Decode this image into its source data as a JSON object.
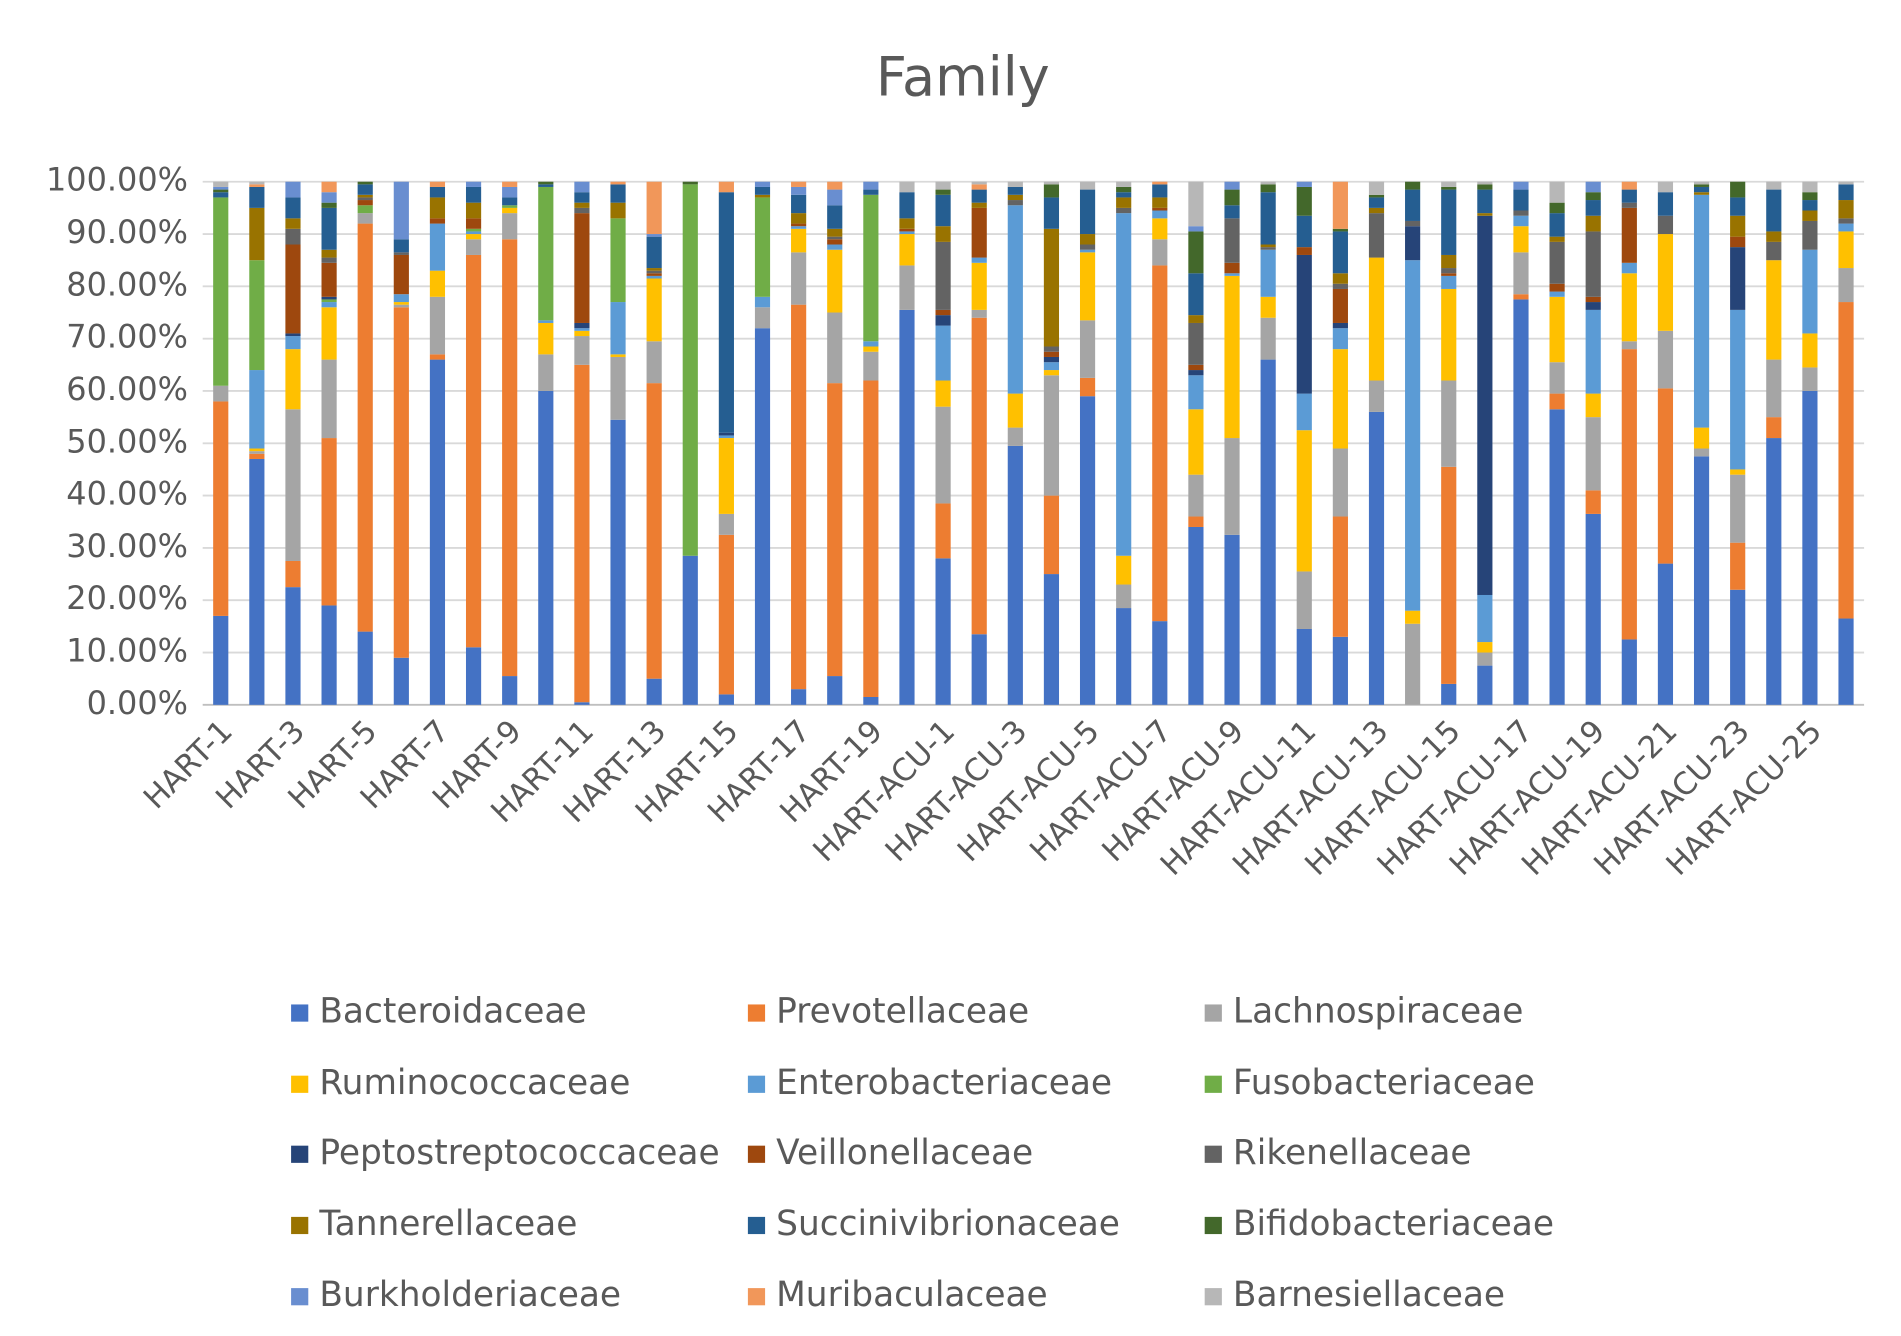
{
  "chart_data": {
    "type": "stacked_bar",
    "title": "Family",
    "categories": [
      "HART-1",
      null,
      "HART-3",
      null,
      "HART-5",
      null,
      "HART-7",
      null,
      "HART-9",
      null,
      "HART-11",
      null,
      "HART-13",
      null,
      "HART-15",
      null,
      "HART-17",
      null,
      "HART-19",
      null,
      "HART-ACU-1",
      null,
      "HART-ACU-3",
      null,
      "HART-ACU-5",
      null,
      "HART-ACU-7",
      null,
      "HART-ACU-9",
      null,
      "HART-ACU-11",
      null,
      "HART-ACU-13",
      null,
      "HART-ACU-15",
      null,
      "HART-ACU-17",
      null,
      "HART-ACU-19",
      null,
      "HART-ACU-21",
      null,
      "HART-ACU-23",
      null,
      "HART-ACU-25",
      null
    ],
    "ylim": [
      0,
      100
    ],
    "yticks": [
      {
        "value": 0,
        "label": "0.00%"
      },
      {
        "value": 10,
        "label": "10.00%"
      },
      {
        "value": 20,
        "label": "20.00%"
      },
      {
        "value": 30,
        "label": "30.00%"
      },
      {
        "value": 40,
        "label": "40.00%"
      },
      {
        "value": 50,
        "label": "50.00%"
      },
      {
        "value": 60,
        "label": "60.00%"
      },
      {
        "value": 70,
        "label": "70.00%"
      },
      {
        "value": 80,
        "label": "80.00%"
      },
      {
        "value": 90,
        "label": "90.00%"
      },
      {
        "value": 100,
        "label": "100.00%"
      }
    ],
    "grid": true,
    "legend": "bottom",
    "series": [
      {
        "name": "Bacteroidaceae",
        "color": "#4472c4",
        "values": [
          17,
          47,
          22.5,
          19,
          14,
          9,
          66,
          11,
          5.5,
          60,
          0.5,
          54.5,
          5,
          28.5,
          2,
          72,
          3,
          5.5,
          1.5,
          75.5,
          28,
          13.5,
          49.5,
          25,
          59,
          18.5,
          16,
          34,
          32.5,
          66,
          14.5,
          13,
          56,
          0,
          4,
          7.5,
          77.5,
          56.5,
          36.5,
          12.5,
          27,
          47.5,
          22,
          51,
          60,
          16.5
        ]
      },
      {
        "name": "Prevotellaceae",
        "color": "#ed7d31",
        "values": [
          41,
          1,
          5,
          32,
          78,
          67,
          1,
          75,
          83.5,
          0,
          64.5,
          0,
          56.5,
          0,
          30.5,
          0,
          73.5,
          56,
          60.5,
          0,
          10.5,
          60.5,
          0,
          15,
          3.5,
          0,
          68,
          2,
          0,
          0,
          0,
          23,
          0,
          0,
          41.5,
          0,
          1,
          3,
          4.5,
          55.5,
          33.5,
          0,
          9,
          4,
          0,
          60.5
        ]
      },
      {
        "name": "Lachnospiraceae",
        "color": "#a5a5a5",
        "values": [
          3,
          0.5,
          29,
          15,
          2,
          0.5,
          11,
          3,
          5,
          7,
          5.5,
          12,
          8,
          0,
          4,
          4,
          10,
          13.5,
          5.5,
          8.5,
          18.5,
          1.5,
          3.5,
          23,
          11,
          4.5,
          5,
          8,
          18.5,
          8,
          11,
          13,
          6,
          15.5,
          16.5,
          2.5,
          8,
          6,
          14,
          1.5,
          11,
          1.5,
          13,
          11,
          4.5,
          6.5
        ]
      },
      {
        "name": "Ruminococcaceae",
        "color": "#ffc000",
        "values": [
          0,
          0.5,
          11.5,
          10,
          0,
          0.5,
          5,
          1,
          1,
          6,
          1,
          0.5,
          12,
          0,
          14.5,
          0,
          4.5,
          12,
          1,
          6,
          5,
          9,
          6.5,
          1,
          13,
          5.5,
          4,
          12.5,
          31,
          4,
          27,
          19,
          23.5,
          2.5,
          17.5,
          2,
          5,
          12.5,
          4.5,
          13,
          18.5,
          4,
          1,
          19,
          6.5,
          7
        ]
      },
      {
        "name": "Enterobacteriaceae",
        "color": "#5b9bd5",
        "values": [
          0,
          15,
          2.5,
          1,
          0,
          1.5,
          9,
          0.5,
          0,
          0.5,
          0.5,
          10,
          0.5,
          0,
          0.5,
          2,
          0.5,
          1,
          1,
          0.5,
          10.5,
          1,
          36,
          1.5,
          0.5,
          65.5,
          1.5,
          6.5,
          0.5,
          9,
          7,
          4,
          0,
          67,
          2.5,
          9,
          2,
          1,
          16,
          2,
          0,
          44.5,
          30.5,
          0,
          16,
          1.5
        ]
      },
      {
        "name": "Fusobacteriaceae",
        "color": "#70ad47",
        "values": [
          36,
          21,
          0,
          0.5,
          1.5,
          0,
          0,
          0.5,
          0.5,
          25.5,
          0,
          16,
          0,
          71,
          0,
          19,
          0,
          0,
          28,
          0,
          0,
          0,
          0,
          0,
          0,
          0,
          0,
          0,
          0,
          0,
          0,
          0,
          0,
          0,
          0,
          0,
          0,
          0,
          0,
          0,
          0,
          0,
          0,
          0,
          0,
          0
        ]
      },
      {
        "name": "Peptostreptococcaceae",
        "color": "#264478",
        "values": [
          0,
          0,
          0.5,
          0.5,
          0,
          0,
          0,
          0,
          0,
          0,
          1,
          0,
          0,
          0,
          0.5,
          0,
          0,
          0,
          0,
          0,
          2,
          0,
          0,
          1,
          0,
          0,
          0,
          1,
          0,
          0,
          26.5,
          1,
          0,
          6.5,
          0,
          72.5,
          0,
          0,
          1.5,
          0,
          0,
          0,
          12,
          0,
          0,
          0
        ]
      },
      {
        "name": "Veillonellaceae",
        "color": "#9e480e",
        "values": [
          0,
          0,
          17,
          6.5,
          1,
          7.5,
          1,
          2,
          0,
          0,
          21,
          0,
          0.5,
          0,
          0,
          0,
          0.5,
          1,
          0,
          0.5,
          1,
          9.5,
          0,
          1,
          0,
          0,
          0.5,
          1,
          2,
          0,
          1.5,
          6.5,
          0,
          0,
          0.5,
          0,
          0,
          1.5,
          1,
          10.5,
          0,
          0,
          2,
          0,
          0,
          0
        ]
      },
      {
        "name": "Rikenellaceae",
        "color": "#636363",
        "values": [
          0,
          0,
          3,
          1,
          0.5,
          0.5,
          0,
          0,
          0,
          0,
          1,
          0,
          0.5,
          0,
          0,
          0,
          0,
          0.5,
          0,
          0,
          13,
          0,
          1,
          1,
          1,
          1,
          0,
          8,
          8.5,
          0.5,
          0,
          1,
          8.5,
          1,
          1,
          0,
          1,
          8,
          12.5,
          1,
          3.5,
          0,
          0,
          3.5,
          5.5,
          1
        ]
      },
      {
        "name": "Tannerellaceae",
        "color": "#997300",
        "values": [
          0,
          10,
          2,
          1.5,
          0.5,
          0,
          4,
          3,
          0,
          0,
          1,
          3,
          0.5,
          0,
          0,
          0.5,
          2,
          1.5,
          0,
          2,
          3,
          1,
          1,
          22.5,
          2,
          2,
          2,
          1.5,
          0,
          0.5,
          0,
          2,
          1,
          0,
          2.5,
          0.5,
          0,
          1,
          3,
          0,
          0,
          0.5,
          4,
          2,
          2,
          3.5
        ]
      },
      {
        "name": "Succinivibrionaceae",
        "color": "#255e91",
        "values": [
          1,
          4,
          4,
          8,
          2,
          2.5,
          2,
          3,
          1.5,
          0.5,
          2,
          3.5,
          6,
          0,
          46,
          1.5,
          3.5,
          4.5,
          1,
          5,
          6,
          2.5,
          1.5,
          6,
          8.5,
          1,
          2.5,
          8,
          2.5,
          10,
          6,
          8,
          2,
          6,
          12.5,
          4.5,
          4,
          4.5,
          3,
          2.5,
          4.5,
          1,
          3.5,
          8,
          2,
          3
        ]
      },
      {
        "name": "Bifidobacteriaceae",
        "color": "#43682b",
        "values": [
          0.5,
          0,
          0,
          1,
          0.5,
          0,
          0,
          0,
          0,
          0.5,
          0,
          0,
          0,
          0.5,
          0,
          0,
          0,
          0,
          0,
          0,
          1,
          0,
          0,
          2.5,
          0,
          1,
          0,
          8,
          3,
          1.5,
          5.5,
          0.5,
          0.5,
          1.5,
          0.5,
          1,
          0,
          2,
          1.5,
          0,
          0,
          0.5,
          3,
          0,
          1.5,
          0
        ]
      },
      {
        "name": "Burkholderiaceae",
        "color": "#698ed0",
        "values": [
          0.5,
          0,
          3,
          2,
          0,
          11,
          0,
          1,
          2,
          0,
          2,
          0,
          0.5,
          0,
          0,
          1,
          1.5,
          3,
          1.5,
          0,
          0,
          0,
          0,
          0,
          0,
          0,
          0,
          1,
          1.5,
          0,
          1,
          0,
          0,
          0,
          0,
          0,
          1.5,
          0,
          2,
          0,
          0,
          0,
          0,
          0,
          0,
          0
        ]
      },
      {
        "name": "Muribaculaceae",
        "color": "#f1975a",
        "values": [
          0,
          0.5,
          0,
          2,
          0,
          0,
          1,
          0,
          1,
          0,
          0,
          0.5,
          10,
          0,
          2,
          0,
          1,
          1.5,
          0,
          0,
          0,
          1,
          0,
          0,
          0,
          0,
          0.5,
          0,
          0,
          0,
          0,
          9,
          0,
          0,
          0,
          0,
          0,
          0,
          0,
          1.5,
          0,
          0,
          0,
          0,
          0,
          0
        ]
      },
      {
        "name": "Barnesiellaceae",
        "color": "#b7b7b7",
        "values": [
          1,
          0.5,
          0,
          0,
          0,
          0,
          0,
          0,
          0,
          0,
          0,
          0,
          0,
          0,
          0,
          0,
          0,
          0,
          0,
          2,
          1.5,
          0.5,
          1,
          0.5,
          1.5,
          1,
          0,
          8.5,
          0,
          0.5,
          0,
          0,
          2.5,
          0,
          1,
          0.5,
          0,
          4,
          0,
          0,
          2,
          0.5,
          0,
          1.5,
          2,
          0.5
        ]
      }
    ]
  }
}
